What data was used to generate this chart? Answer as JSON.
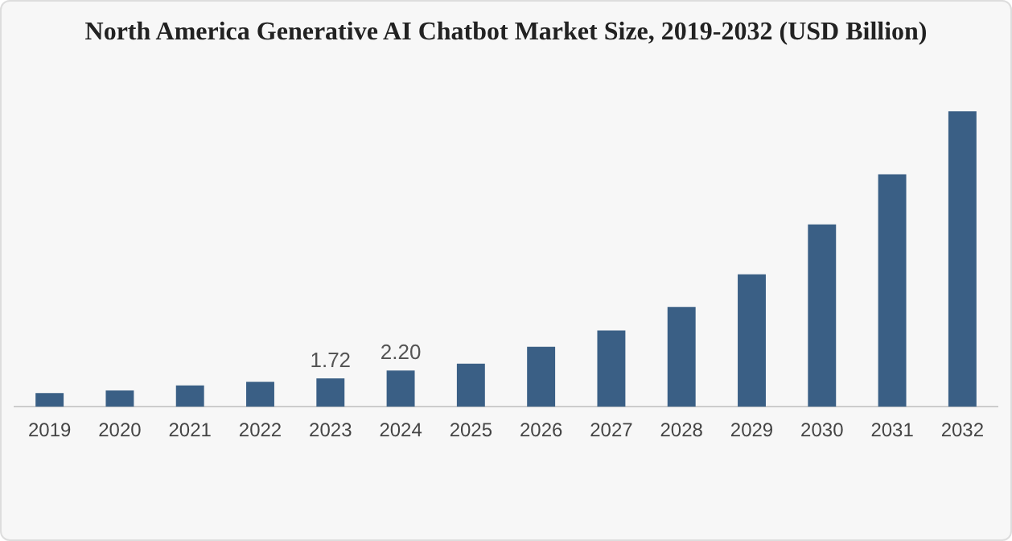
{
  "chart_data": {
    "type": "bar",
    "title": "North America Generative AI Chatbot Market Size, 2019-2032 (USD Billion)",
    "categories": [
      "2019",
      "2020",
      "2021",
      "2022",
      "2023",
      "2024",
      "2025",
      "2026",
      "2027",
      "2028",
      "2029",
      "2030",
      "2031",
      "2032"
    ],
    "values": [
      0.83,
      0.99,
      1.3,
      1.51,
      1.72,
      2.2,
      2.62,
      3.64,
      4.63,
      6.06,
      8.05,
      11.08,
      14.12,
      17.95
    ],
    "value_labels": [
      null,
      null,
      null,
      null,
      "1.72",
      "2.20",
      null,
      null,
      null,
      null,
      null,
      null,
      null,
      null
    ],
    "color": "#3a5f85",
    "grid": false,
    "legend": false
  }
}
